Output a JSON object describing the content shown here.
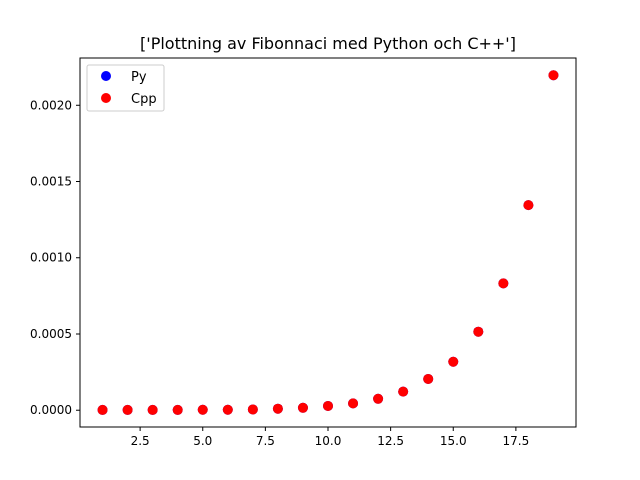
{
  "chart_data": {
    "type": "scatter",
    "title": "['Plottning av Fibonnaci med Python och C++']",
    "xlabel": "",
    "ylabel": "",
    "xlim": [
      0.1,
      19.9
    ],
    "ylim": [
      -0.00011,
      0.00231
    ],
    "xticks": [
      2.5,
      5.0,
      7.5,
      10.0,
      12.5,
      15.0,
      17.5
    ],
    "xtick_labels": [
      "2.5",
      "5.0",
      "7.5",
      "10.0",
      "12.5",
      "15.0",
      "17.5"
    ],
    "yticks": [
      0.0,
      0.0005,
      0.001,
      0.0015,
      0.002
    ],
    "ytick_labels": [
      "0.0000",
      "0.0005",
      "0.0010",
      "0.0015",
      "0.0020"
    ],
    "grid": false,
    "legend_position": "top-left",
    "series": [
      {
        "name": "Py",
        "color": "#0000ff",
        "x": [
          1,
          2,
          3,
          4,
          5,
          6,
          7,
          8,
          9,
          10,
          11,
          12,
          13,
          14,
          15,
          16,
          17,
          18,
          19
        ],
        "y": [
          2e-06,
          2e-06,
          2e-06,
          2e-06,
          3e-06,
          3e-06,
          5e-06,
          1e-05,
          1.6e-05,
          2.8e-05,
          4.5e-05,
          7.5e-05,
          0.000122,
          0.000205,
          0.000318,
          0.000515,
          0.000832,
          0.001345,
          0.002197
        ]
      },
      {
        "name": "Cpp",
        "color": "#ff0000",
        "x": [
          1,
          2,
          3,
          4,
          5,
          6,
          7,
          8,
          9,
          10,
          11,
          12,
          13,
          14,
          15,
          16,
          17,
          18,
          19
        ],
        "y": [
          2e-06,
          2e-06,
          2e-06,
          2e-06,
          3e-06,
          3e-06,
          5e-06,
          1e-05,
          1.6e-05,
          2.8e-05,
          4.5e-05,
          7.5e-05,
          0.000122,
          0.000205,
          0.000318,
          0.000515,
          0.000832,
          0.001345,
          0.002197
        ]
      }
    ]
  }
}
